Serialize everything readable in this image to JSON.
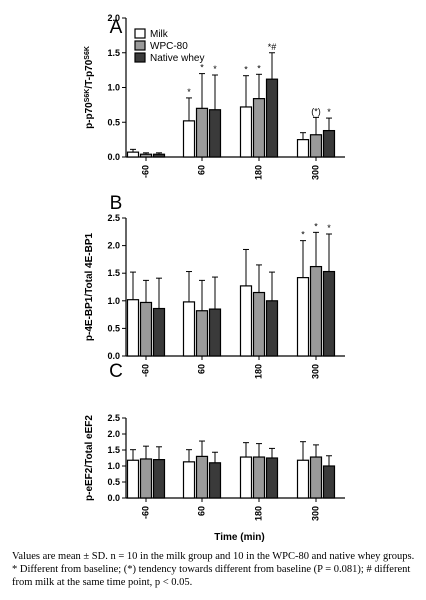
{
  "chart_data": [
    {
      "type": "bar",
      "panel": "A",
      "ylabel": "p-p70S6K/T-p70S6K",
      "ylabel_base": "p-p70",
      "ylabel_sup1": "S6K",
      "ylabel_mid": "/T-p70",
      "ylabel_sup2": "S6K",
      "ylim": [
        0,
        2.0
      ],
      "yticks": [
        "0.0",
        "0.5",
        "1.0",
        "1.5",
        "2.0"
      ],
      "categories": [
        "-60",
        "60",
        "180",
        "300"
      ],
      "series": [
        {
          "name": "Milk",
          "values": [
            0.07,
            0.52,
            0.72,
            0.25
          ],
          "errors": [
            0.04,
            0.33,
            0.45,
            0.1
          ],
          "labels": [
            "",
            "*",
            "*",
            ""
          ]
        },
        {
          "name": "WPC-80",
          "values": [
            0.04,
            0.7,
            0.84,
            0.32
          ],
          "errors": [
            0.02,
            0.5,
            0.35,
            0.25
          ],
          "labels": [
            "",
            "*",
            "*",
            "(*)"
          ]
        },
        {
          "name": "Native whey",
          "values": [
            0.04,
            0.68,
            1.12,
            0.38
          ],
          "errors": [
            0.02,
            0.5,
            0.38,
            0.18
          ],
          "labels": [
            "",
            "*",
            "*#",
            "*"
          ]
        }
      ],
      "legend": "top-left"
    },
    {
      "type": "bar",
      "panel": "B",
      "ylabel": "p-4E-BP1/Total 4E-BP1",
      "ylim": [
        0,
        2.5
      ],
      "yticks": [
        "0.0",
        "0.5",
        "1.0",
        "1.5",
        "2.0",
        "2.5"
      ],
      "categories": [
        "-60",
        "60",
        "180",
        "300"
      ],
      "series": [
        {
          "name": "Milk",
          "values": [
            1.02,
            0.98,
            1.27,
            1.42
          ],
          "errors": [
            0.5,
            0.55,
            0.66,
            0.67
          ],
          "labels": [
            "",
            "",
            "",
            "*"
          ]
        },
        {
          "name": "WPC-80",
          "values": [
            0.97,
            0.82,
            1.15,
            1.62
          ],
          "errors": [
            0.4,
            0.55,
            0.5,
            0.62
          ],
          "labels": [
            "",
            "",
            "",
            "*"
          ]
        },
        {
          "name": "Native whey",
          "values": [
            0.86,
            0.85,
            1.0,
            1.53
          ],
          "errors": [
            0.55,
            0.58,
            0.52,
            0.68
          ],
          "labels": [
            "",
            "",
            "",
            "*"
          ]
        }
      ]
    },
    {
      "type": "bar",
      "panel": "C",
      "ylabel": "p-eEF2/Total eEF2",
      "ylim": [
        0,
        2.5
      ],
      "yticks": [
        "0.0",
        "0.5",
        "1.0",
        "1.5",
        "2.0",
        "2.5"
      ],
      "categories": [
        "-60",
        "60",
        "180",
        "300"
      ],
      "xlabel": "Time (min)",
      "series": [
        {
          "name": "Milk",
          "values": [
            1.18,
            1.13,
            1.28,
            1.18
          ],
          "errors": [
            0.33,
            0.38,
            0.45,
            0.58
          ],
          "labels": [
            "",
            "",
            "",
            ""
          ]
        },
        {
          "name": "WPC-80",
          "values": [
            1.22,
            1.3,
            1.28,
            1.28
          ],
          "errors": [
            0.4,
            0.48,
            0.42,
            0.38
          ],
          "labels": [
            "",
            "",
            "",
            ""
          ]
        },
        {
          "name": "Native whey",
          "values": [
            1.2,
            1.1,
            1.25,
            1.0
          ],
          "errors": [
            0.4,
            0.33,
            0.3,
            0.32
          ],
          "labels": [
            "",
            "",
            "",
            ""
          ]
        }
      ]
    }
  ],
  "colors": {
    "milk": "#ffffff",
    "wpc80": "#9a9a9a",
    "native_whey": "#3a3a3a",
    "stroke": "#000000"
  },
  "caption": "Values are mean ± SD. n = 10 in the milk group and 10 in the WPC-80 and native whey groups. * Different from baseline; (*) tendency towards different from baseline (P = 0.081); # different from milk at the same time point, p < 0.05."
}
